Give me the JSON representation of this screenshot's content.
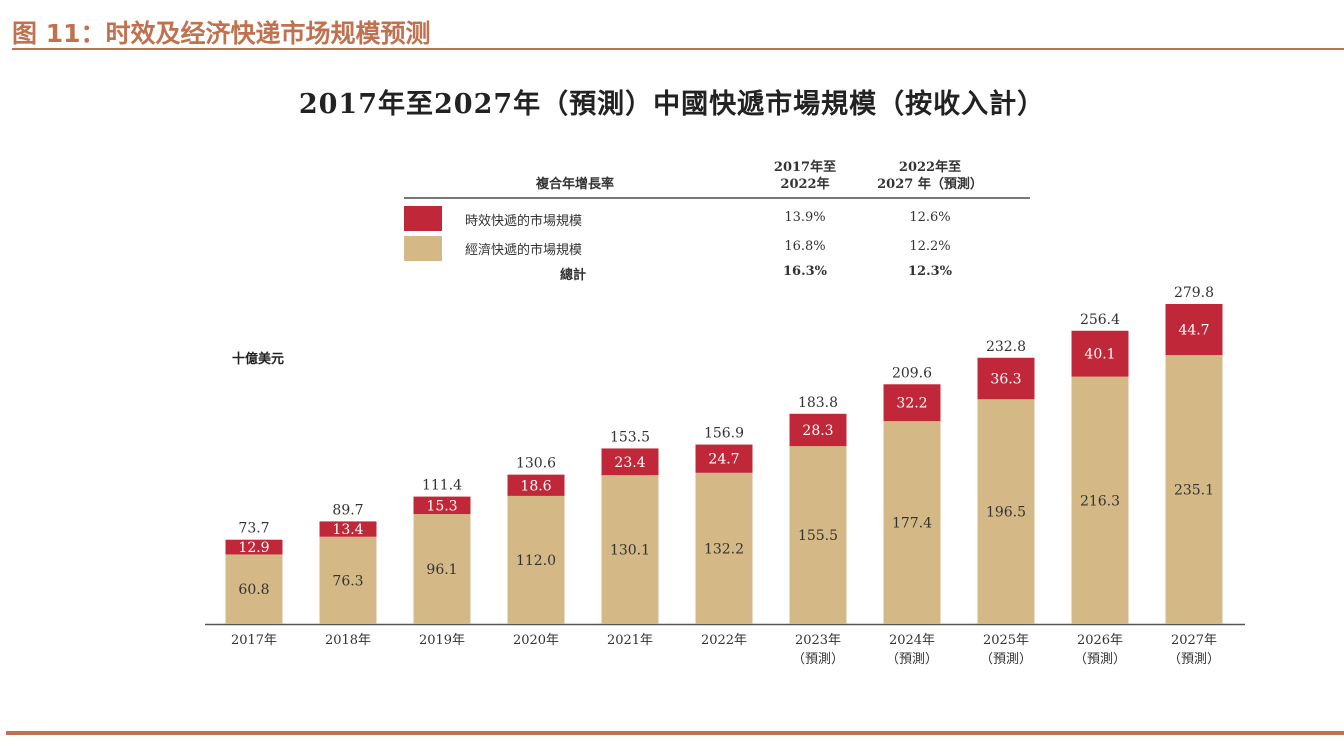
{
  "figure_title": "图 11：时效及经济快递市场规模预测",
  "chart_data": {
    "type": "bar",
    "stacked": true,
    "title": "2017年至2027年（預測）中國快遞市場規模（按收入計）",
    "ylabel": "十億美元",
    "categories": [
      "2017年",
      "2018年",
      "2019年",
      "2020年",
      "2021年",
      "2022年",
      "2023年\n（預測）",
      "2024年\n（預測）",
      "2025年\n（預測）",
      "2026年\n（預測）",
      "2027年\n（預測）"
    ],
    "series": [
      {
        "name": "經濟快遞的市場規模",
        "color": "#d4b987",
        "values": [
          60.8,
          76.3,
          96.1,
          112.0,
          130.1,
          132.2,
          155.5,
          177.4,
          196.5,
          216.3,
          235.1
        ]
      },
      {
        "name": "時效快遞的市場規模",
        "color": "#c0283a",
        "values": [
          12.9,
          13.4,
          15.3,
          18.6,
          23.4,
          24.7,
          28.3,
          32.2,
          36.3,
          40.1,
          44.7
        ]
      }
    ],
    "totals": [
      73.7,
      89.7,
      111.4,
      130.6,
      153.5,
      156.9,
      183.8,
      209.6,
      232.8,
      256.4,
      279.8
    ],
    "ylim": [
      0,
      279.8
    ],
    "grid": false,
    "legend_position": "top"
  },
  "legend": {
    "header": "複合年增長率",
    "col1": [
      "2017年至",
      "2022年"
    ],
    "col2": [
      "2022年至",
      "2027 年（預測）"
    ],
    "rows": [
      {
        "label": "時效快遞的市場規模",
        "c1": "13.9%",
        "c2": "12.6%"
      },
      {
        "label": "經濟快遞的市場規模",
        "c1": "16.8%",
        "c2": "12.2%"
      },
      {
        "label": "總計",
        "c1": "16.3%",
        "c2": "12.3%"
      }
    ]
  }
}
